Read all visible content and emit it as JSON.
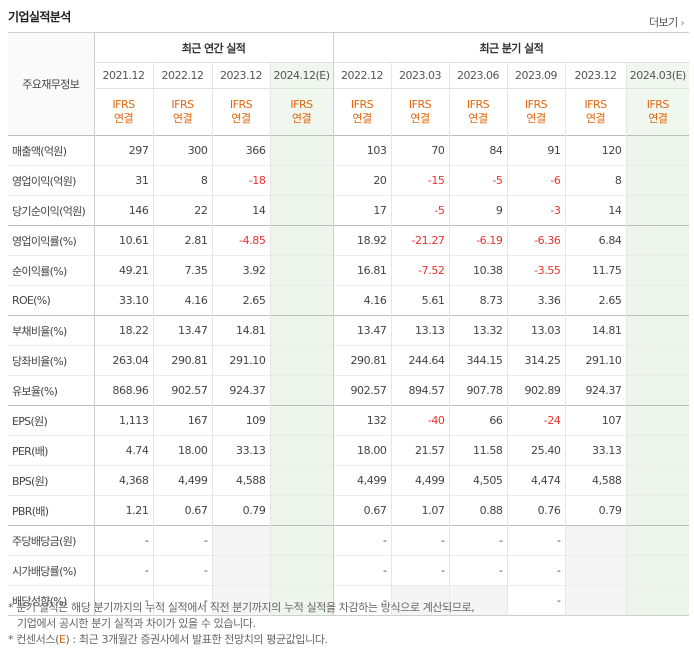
{
  "title": "기업실적분석",
  "more_label": "더보기",
  "stub_label": "주요재무정보",
  "group_annual": "최근 연간 실적",
  "group_quarter": "최근 분기 실적",
  "periods": [
    "2021.12",
    "2022.12",
    "2023.12",
    "2024.12(E)",
    "2022.12",
    "2023.03",
    "2023.06",
    "2023.09",
    "2023.12",
    "2024.03(E)"
  ],
  "ifrs": {
    "line1": "IFRS",
    "line2": "연결"
  },
  "rows": [
    {
      "label": "매출액(억원)",
      "values": [
        "297",
        "300",
        "366",
        "",
        "103",
        "70",
        "84",
        "91",
        "120",
        ""
      ]
    },
    {
      "label": "영업이익(억원)",
      "values": [
        "31",
        "8",
        "-18",
        "",
        "20",
        "-15",
        "-5",
        "-6",
        "8",
        ""
      ]
    },
    {
      "label": "당기순이익(억원)",
      "values": [
        "146",
        "22",
        "14",
        "",
        "17",
        "-5",
        "9",
        "-3",
        "14",
        ""
      ]
    },
    {
      "label": "영업이익률(%)",
      "values": [
        "10.61",
        "2.81",
        "-4.85",
        "",
        "18.92",
        "-21.27",
        "-6.19",
        "-6.36",
        "6.84",
        ""
      ]
    },
    {
      "label": "순이익률(%)",
      "values": [
        "49.21",
        "7.35",
        "3.92",
        "",
        "16.81",
        "-7.52",
        "10.38",
        "-3.55",
        "11.75",
        ""
      ]
    },
    {
      "label": "ROE(%)",
      "values": [
        "33.10",
        "4.16",
        "2.65",
        "",
        "4.16",
        "5.61",
        "8.73",
        "3.36",
        "2.65",
        ""
      ]
    },
    {
      "label": "부채비율(%)",
      "values": [
        "18.22",
        "13.47",
        "14.81",
        "",
        "13.47",
        "13.13",
        "13.32",
        "13.03",
        "14.81",
        ""
      ]
    },
    {
      "label": "당좌비율(%)",
      "values": [
        "263.04",
        "290.81",
        "291.10",
        "",
        "290.81",
        "244.64",
        "344.15",
        "314.25",
        "291.10",
        ""
      ]
    },
    {
      "label": "유보율(%)",
      "values": [
        "868.96",
        "902.57",
        "924.37",
        "",
        "902.57",
        "894.57",
        "907.78",
        "902.89",
        "924.37",
        ""
      ]
    },
    {
      "label": "EPS(원)",
      "values": [
        "1,113",
        "167",
        "109",
        "",
        "132",
        "-40",
        "66",
        "-24",
        "107",
        ""
      ]
    },
    {
      "label": "PER(배)",
      "values": [
        "4.74",
        "18.00",
        "33.13",
        "",
        "18.00",
        "21.57",
        "11.58",
        "25.40",
        "33.13",
        ""
      ]
    },
    {
      "label": "BPS(원)",
      "values": [
        "4,368",
        "4,499",
        "4,588",
        "",
        "4,499",
        "4,499",
        "4,505",
        "4,474",
        "4,588",
        ""
      ]
    },
    {
      "label": "PBR(배)",
      "values": [
        "1.21",
        "0.67",
        "0.79",
        "",
        "0.67",
        "1.07",
        "0.88",
        "0.76",
        "0.79",
        ""
      ]
    },
    {
      "label": "주당배당금(원)",
      "values": [
        "-",
        "-",
        "",
        "",
        "-",
        "-",
        "-",
        "-",
        "",
        ""
      ]
    },
    {
      "label": "시가배당률(%)",
      "values": [
        "-",
        "-",
        "",
        "",
        "-",
        "-",
        "-",
        "-",
        "",
        ""
      ]
    },
    {
      "label": "배당성향(%)",
      "values": [
        "-",
        "-",
        "",
        "",
        "-",
        "",
        "",
        "-",
        "",
        ""
      ]
    }
  ],
  "notes": {
    "line1": "* 분기 실적은 해당 분기까지의 누적 실적에서 직전 분기까지의 누적 실적을 차감하는 방식으로 계산되므로,",
    "line2": "기업에서 공시한 분기 실적과 차이가 있을 수 있습니다.",
    "line3_prefix": "* 컨센서스(",
    "line3_e": "E",
    "line3_suffix": ") : 최근 3개월간 증권사에서 발표한 전망치의 평균값입니다."
  },
  "colors": {
    "accent": "#e0650b",
    "negative": "#e8332d",
    "estimate_bg": "#eef6ec"
  }
}
